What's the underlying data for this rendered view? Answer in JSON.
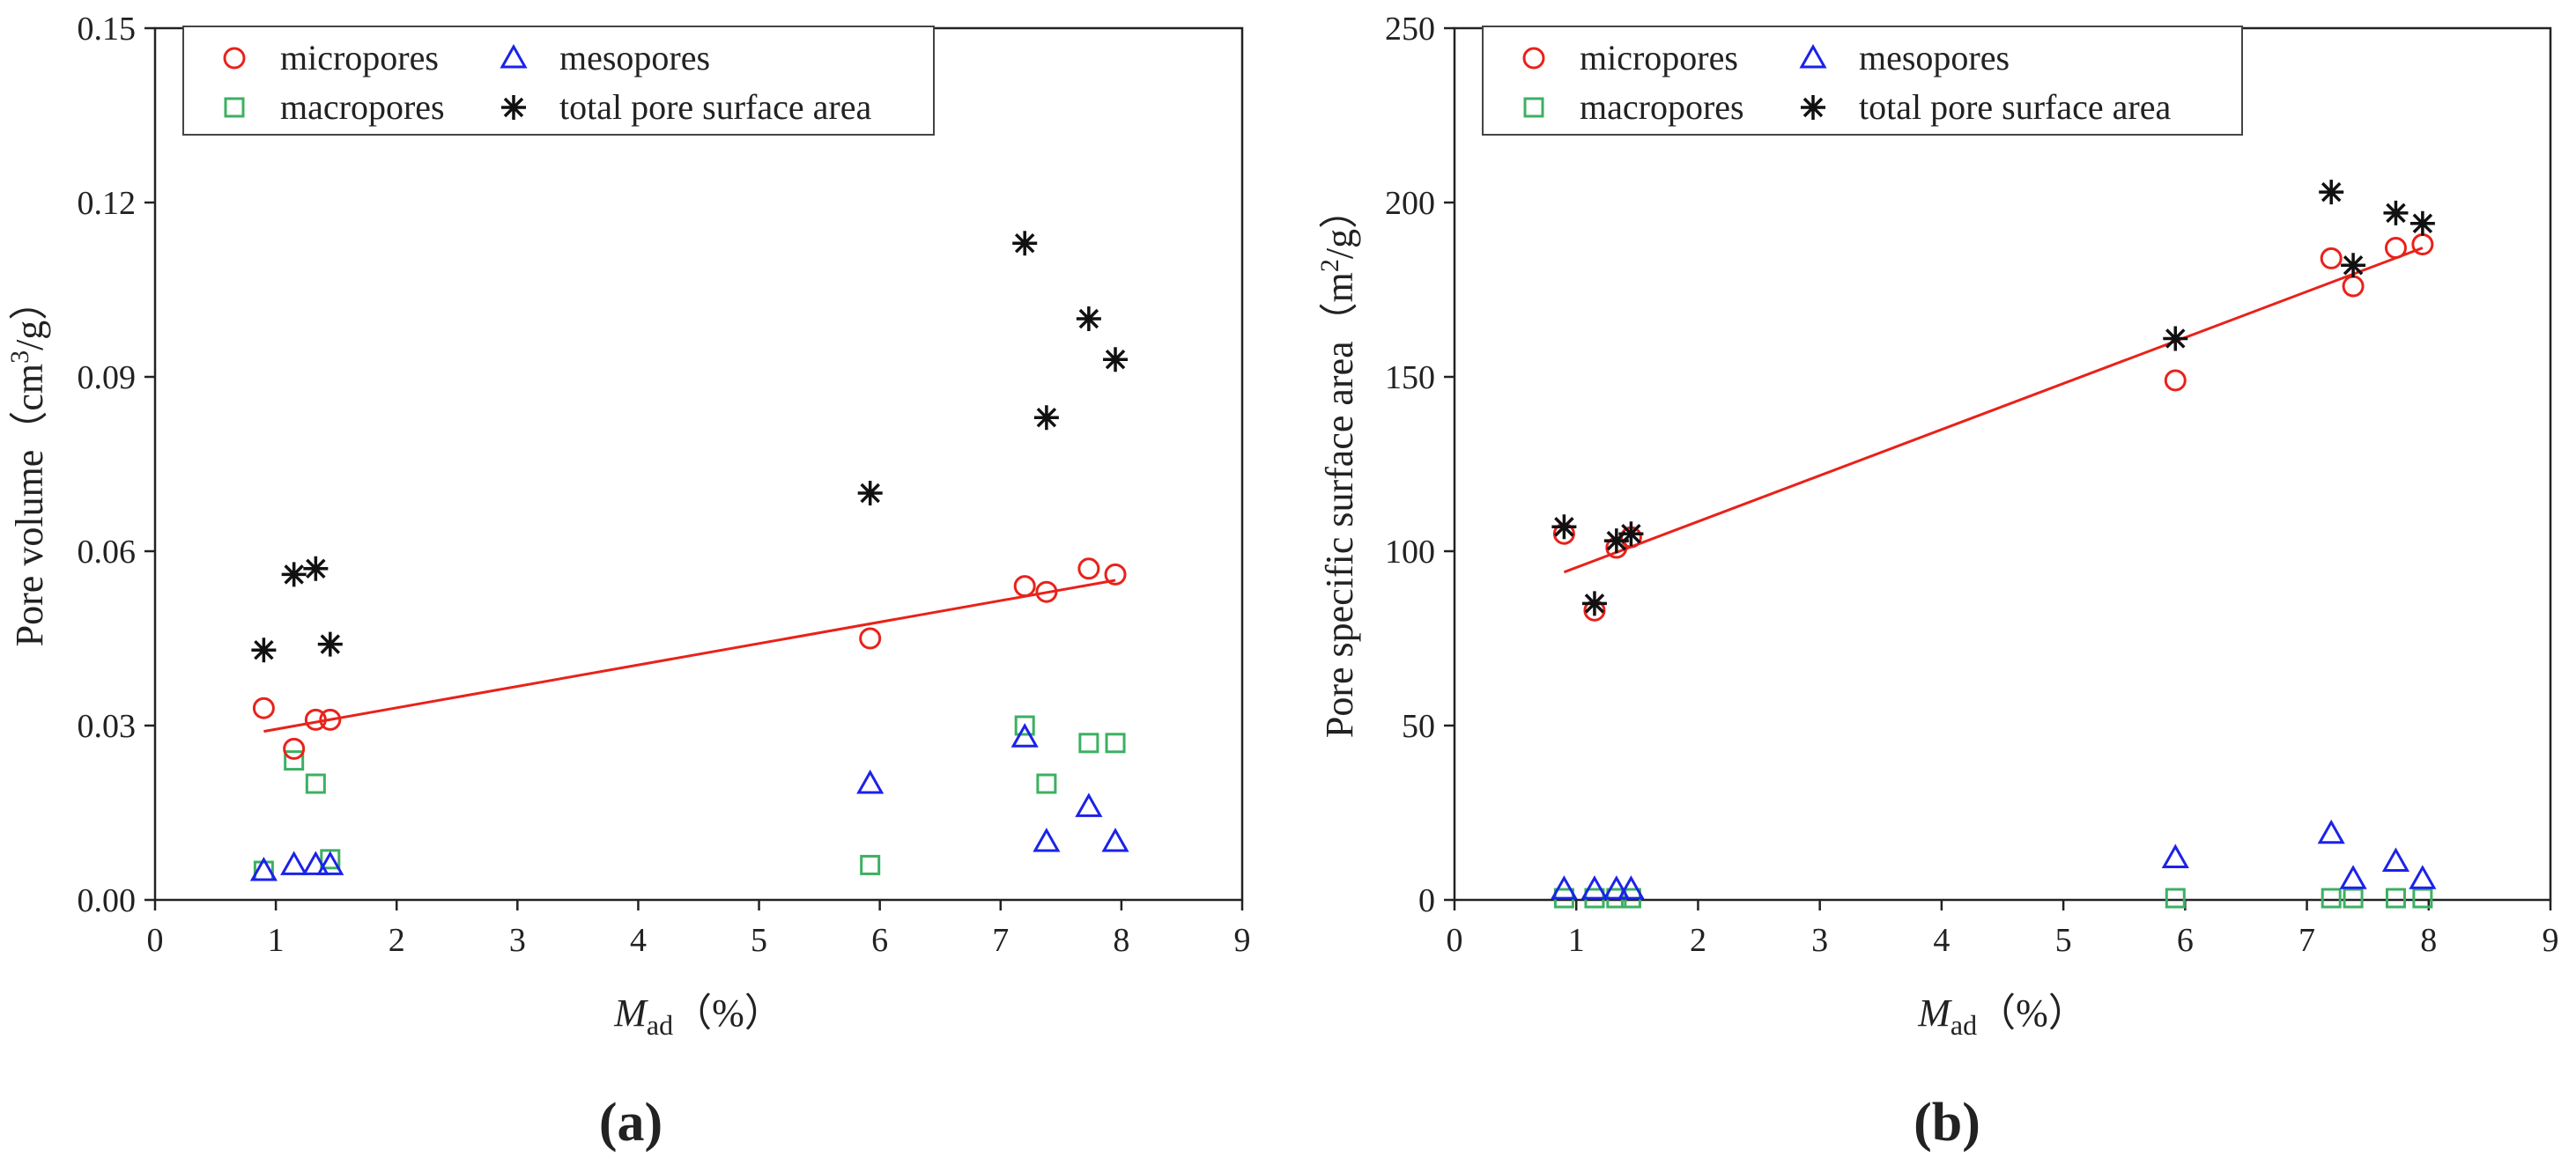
{
  "chart_data": [
    {
      "type": "scatter",
      "panel_label": "(a)",
      "ylabel": "Pore volume（cm³/g）",
      "xlabel": "Mad（%）",
      "xlim": [
        0,
        9
      ],
      "ylim": [
        0,
        0.15
      ],
      "xticks": [
        "0",
        "1",
        "2",
        "3",
        "4",
        "5",
        "6",
        "7",
        "8",
        "9"
      ],
      "yticks": [
        "0.00",
        "0.03",
        "0.06",
        "0.09",
        "0.12",
        "0.15"
      ],
      "legend_position": "top-left",
      "series": [
        {
          "name": "micropores",
          "marker": "circle",
          "color": "#e8221b",
          "points": [
            [
              0.9,
              0.033
            ],
            [
              1.15,
              0.026
            ],
            [
              1.33,
              0.031
            ],
            [
              1.45,
              0.031
            ],
            [
              5.92,
              0.045
            ],
            [
              7.2,
              0.054
            ],
            [
              7.38,
              0.053
            ],
            [
              7.73,
              0.057
            ],
            [
              7.95,
              0.056
            ]
          ]
        },
        {
          "name": "mesopores",
          "marker": "triangle",
          "color": "#1b22e8",
          "points": [
            [
              0.9,
              0.005
            ],
            [
              1.15,
              0.006
            ],
            [
              1.33,
              0.006
            ],
            [
              1.45,
              0.006
            ],
            [
              5.92,
              0.02
            ],
            [
              7.2,
              0.028
            ],
            [
              7.38,
              0.01
            ],
            [
              7.73,
              0.016
            ],
            [
              7.95,
              0.01
            ]
          ]
        },
        {
          "name": "macropores",
          "marker": "square",
          "color": "#3cb062",
          "points": [
            [
              0.9,
              0.005
            ],
            [
              1.15,
              0.024
            ],
            [
              1.33,
              0.02
            ],
            [
              1.45,
              0.007
            ],
            [
              5.92,
              0.006
            ],
            [
              7.2,
              0.03
            ],
            [
              7.38,
              0.02
            ],
            [
              7.73,
              0.027
            ],
            [
              7.95,
              0.027
            ]
          ]
        },
        {
          "name": "total pore surface area",
          "marker": "star",
          "color": "#111111",
          "points": [
            [
              0.9,
              0.043
            ],
            [
              1.15,
              0.056
            ],
            [
              1.33,
              0.057
            ],
            [
              1.45,
              0.044
            ],
            [
              5.92,
              0.07
            ],
            [
              7.2,
              0.113
            ],
            [
              7.38,
              0.083
            ],
            [
              7.73,
              0.1
            ],
            [
              7.95,
              0.093
            ]
          ]
        }
      ],
      "fit_line": {
        "color": "#e8221b",
        "points": [
          [
            0.9,
            0.029
          ],
          [
            7.95,
            0.055
          ]
        ]
      }
    },
    {
      "type": "scatter",
      "panel_label": "(b)",
      "ylabel": "Pore specific surface area（m²/g）",
      "xlabel": "Mad（%）",
      "xlim": [
        0,
        9
      ],
      "ylim": [
        0,
        250
      ],
      "xticks": [
        "0",
        "1",
        "2",
        "3",
        "4",
        "5",
        "6",
        "7",
        "8",
        "9"
      ],
      "yticks": [
        "0",
        "50",
        "100",
        "150",
        "200",
        "250"
      ],
      "legend_position": "top-left",
      "series": [
        {
          "name": "micropores",
          "marker": "circle",
          "color": "#e8221b",
          "points": [
            [
              0.9,
              105
            ],
            [
              1.15,
              83
            ],
            [
              1.33,
              101
            ],
            [
              1.45,
              104
            ],
            [
              5.92,
              149
            ],
            [
              7.2,
              184
            ],
            [
              7.38,
              176
            ],
            [
              7.73,
              187
            ],
            [
              7.95,
              188
            ]
          ]
        },
        {
          "name": "mesopores",
          "marker": "triangle",
          "color": "#1b22e8",
          "points": [
            [
              0.9,
              3
            ],
            [
              1.15,
              3
            ],
            [
              1.33,
              3
            ],
            [
              1.45,
              3
            ],
            [
              5.92,
              12
            ],
            [
              7.2,
              19
            ],
            [
              7.38,
              6
            ],
            [
              7.73,
              11
            ],
            [
              7.95,
              6
            ]
          ]
        },
        {
          "name": "macropores",
          "marker": "square",
          "color": "#3cb062",
          "points": [
            [
              0.9,
              0.5
            ],
            [
              1.15,
              0.5
            ],
            [
              1.33,
              0.5
            ],
            [
              1.45,
              0.5
            ],
            [
              5.92,
              0.5
            ],
            [
              7.2,
              0.5
            ],
            [
              7.38,
              0.5
            ],
            [
              7.73,
              0.5
            ],
            [
              7.95,
              0.5
            ]
          ]
        },
        {
          "name": "total pore surface area",
          "marker": "star",
          "color": "#111111",
          "points": [
            [
              0.9,
              107
            ],
            [
              1.15,
              85
            ],
            [
              1.33,
              103
            ],
            [
              1.45,
              105
            ],
            [
              5.92,
              161
            ],
            [
              7.2,
              203
            ],
            [
              7.38,
              182
            ],
            [
              7.73,
              197
            ],
            [
              7.95,
              194
            ]
          ]
        }
      ],
      "fit_line": {
        "color": "#e8221b",
        "points": [
          [
            0.9,
            94
          ],
          [
            7.95,
            187
          ]
        ]
      }
    }
  ]
}
